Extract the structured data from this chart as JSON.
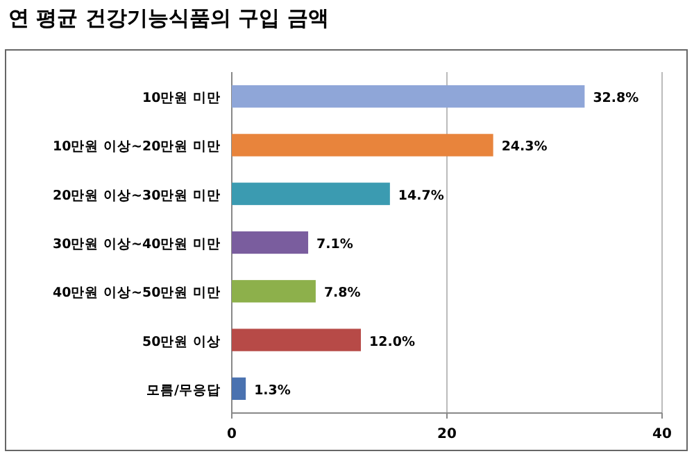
{
  "chart_data": {
    "type": "bar",
    "orientation": "horizontal",
    "title": "연 평균 건강기능식품의 구입 금액",
    "categories": [
      "10만원 미만",
      "10만원 이상~20만원 미만",
      "20만원 이상~30만원 미만",
      "30만원 이상~40만원 미만",
      "40만원 이상~50만원 미만",
      "50만원 이상",
      "모름/무응답"
    ],
    "values": [
      32.8,
      24.3,
      14.7,
      7.1,
      7.8,
      12.0,
      1.3
    ],
    "value_labels": [
      "32.8%",
      "24.3%",
      "14.7%",
      "7.1%",
      "7.8%",
      "12.0%",
      "1.3%"
    ],
    "colors": [
      "#8fa6d8",
      "#e8843c",
      "#3b9bb1",
      "#7a5d9e",
      "#8db04b",
      "#b74a47",
      "#4a72b0"
    ],
    "xlim": [
      0,
      40
    ],
    "xticks": [
      0,
      20,
      40
    ],
    "grid": "x"
  }
}
